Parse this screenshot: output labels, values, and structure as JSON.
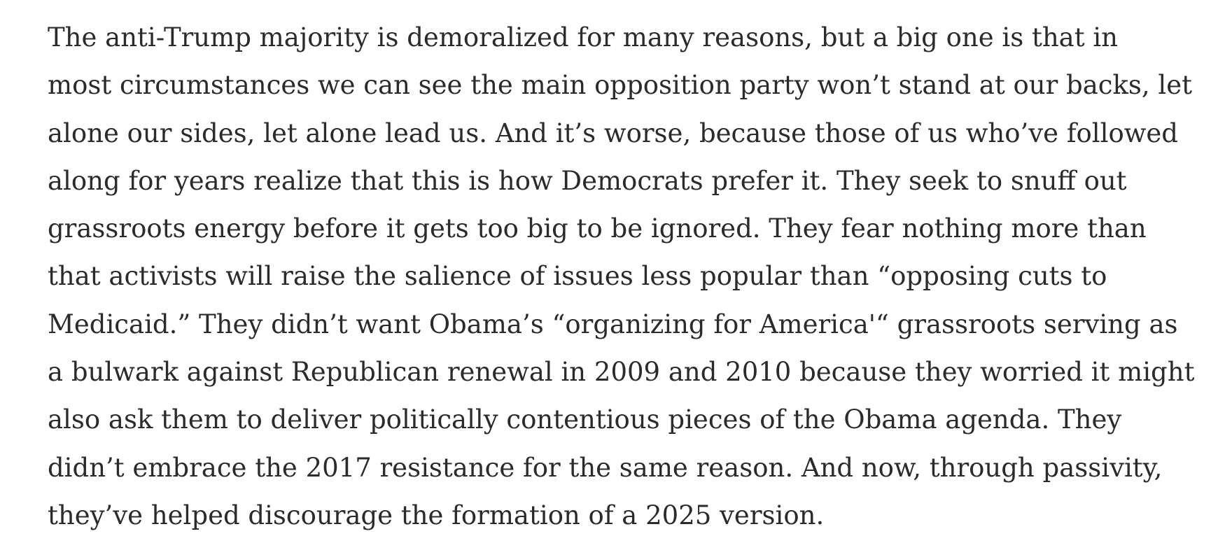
{
  "article": {
    "lines": [
      "The anti-Trump majority is demoralized for many reasons, but a big one is that in",
      "most circumstances we can see the main opposition party won’t stand at our backs, let",
      "alone our sides, let alone lead us. And it’s worse, because those of us who’ve followed",
      "along for years realize that this is how Democrats prefer it. They seek to snuff out",
      "grassroots energy before it gets too big to be ignored. They fear nothing more than",
      "that activists will raise the salience of issues less popular than “opposing cuts to",
      "Medicaid.” They didn’t want Obama’s “organizing for America'“ grassroots serving as",
      "a bulwark against Republican renewal in 2009 and 2010 because they worried it might",
      "also ask them to deliver politically contentious pieces of the Obama agenda. They",
      "didn’t embrace the 2017 resistance for the same reason. And now, through passivity,",
      "they’ve helped discourage the formation of a 2025 version."
    ]
  }
}
